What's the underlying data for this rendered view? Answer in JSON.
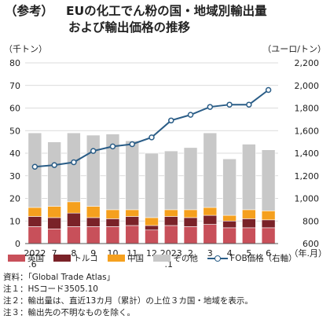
{
  "title": {
    "tag": "（参考）",
    "line1": "EUの化工でん粉の国・地域別輸出量",
    "line2": "および輸出価格の推移"
  },
  "chart_data": {
    "type": "bar",
    "stacked": true,
    "y_unit_left": "（千トン）",
    "y_unit_right": "（ユーロ/トン）",
    "x_unit": "（年.月）",
    "ylim": [
      0,
      80
    ],
    "ylim_right": [
      600,
      2200
    ],
    "yticks": [
      0,
      10,
      20,
      30,
      40,
      50,
      60,
      70,
      80
    ],
    "yticks_right": [
      "600",
      "800",
      "1,000",
      "1,200",
      "1,400",
      "1,600",
      "1,800",
      "2,000",
      "2,200"
    ],
    "categories": [
      {
        "label": "2022",
        "sub": ".6"
      },
      {
        "label": "7",
        "sub": ""
      },
      {
        "label": "8",
        "sub": ""
      },
      {
        "label": "9",
        "sub": ""
      },
      {
        "label": "10",
        "sub": ""
      },
      {
        "label": "11",
        "sub": ""
      },
      {
        "label": "12",
        "sub": ""
      },
      {
        "label": "2023",
        "sub": ".1"
      },
      {
        "label": "2",
        "sub": ""
      },
      {
        "label": "3",
        "sub": ""
      },
      {
        "label": "4",
        "sub": ""
      },
      {
        "label": "5",
        "sub": ""
      },
      {
        "label": "6",
        "sub": ""
      }
    ],
    "series": [
      {
        "name": "英国",
        "color": "#c8505a",
        "values": [
          7.5,
          6.5,
          7.5,
          7.5,
          7.5,
          8,
          6,
          8,
          7.5,
          8.5,
          7,
          7,
          7
        ]
      },
      {
        "name": "トルコ",
        "color": "#7a2228",
        "values": [
          4.5,
          5,
          6,
          4,
          3.5,
          4,
          2,
          4,
          4,
          4,
          3,
          4,
          3.5
        ]
      },
      {
        "name": "中国",
        "color": "#f5a01e",
        "values": [
          4,
          5,
          5,
          5,
          4,
          3,
          3.5,
          3,
          3.5,
          3.5,
          2.5,
          4,
          4
        ]
      },
      {
        "name": "その他",
        "color": "#c8c8c8",
        "values": [
          33,
          28.5,
          30.5,
          31.5,
          33.5,
          30.5,
          28.5,
          26,
          27.5,
          33,
          25,
          29,
          27
        ]
      }
    ],
    "line_series": {
      "name": "FOB価格（右軸）",
      "color": "#2a5d87",
      "values": [
        1280,
        1295,
        1320,
        1420,
        1460,
        1480,
        1540,
        1690,
        1740,
        1810,
        1830,
        1830,
        1960
      ]
    }
  },
  "notes": [
    "資料：「Global Trade Atlas」",
    "注１：HSコード3505.10",
    "注２：輸出量は、直近13カ月（累計）の上位３カ国・地域を表示。",
    "注３：輸出先の不明なものを除く。"
  ]
}
